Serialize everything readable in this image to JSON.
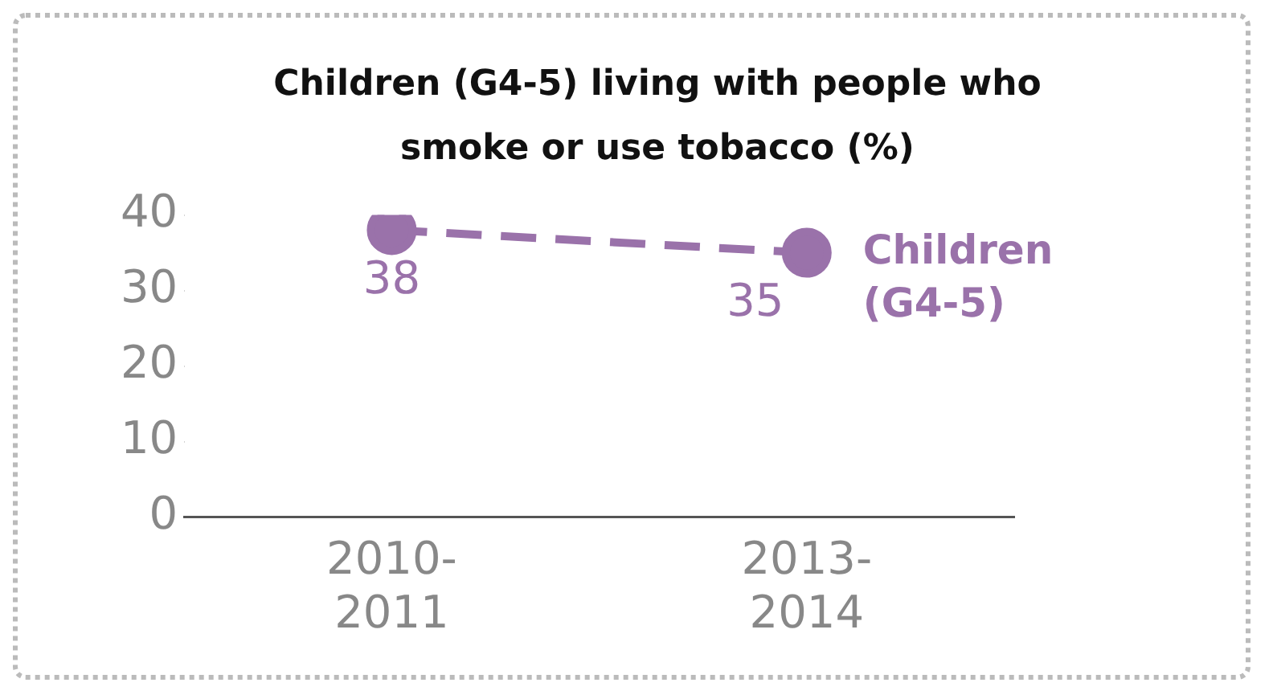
{
  "chart_data": {
    "type": "line",
    "title": "Children (G4-5) living with people who smoke or use tobacco (%)",
    "categories": [
      "2010-2011",
      "2013-2014"
    ],
    "series": [
      {
        "name": "Children (G4-5)",
        "color": "#9a72aa",
        "values": [
          38,
          35
        ]
      }
    ],
    "ylim": [
      0,
      40
    ],
    "yticks": [
      0,
      10,
      20,
      30,
      40
    ],
    "grid": false,
    "legend": false,
    "marker": "circle",
    "line_style": "dashed",
    "data_labels": true
  }
}
